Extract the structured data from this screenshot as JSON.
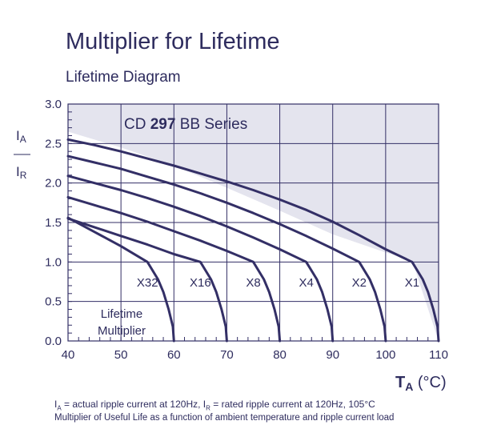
{
  "title": "Multiplier for Lifetime",
  "subtitle": "Lifetime Diagram",
  "series_label": {
    "prefix": "CD ",
    "bold": "297",
    "suffix": " BB Series"
  },
  "footnote": {
    "line1_a": "I",
    "line1_a_sub": "A",
    "line1_b": " = actual ripple current at 120Hz, I",
    "line1_b_sub": "R",
    "line1_c": " = rated ripple current at 120Hz, 105°C",
    "line2": "Multiplier of Useful Life as a function of ambient temperature and ripple current load"
  },
  "colors": {
    "curve": "#332f66",
    "grid": "#332f66",
    "shade": "#e4e4ee",
    "text": "#2e2c5e"
  },
  "chart_data": {
    "type": "line",
    "title": "Lifetime Diagram",
    "xlabel": "T",
    "xlabel_sub": "A",
    "xlabel_unit": " (°C)",
    "ylabel_num": "I",
    "ylabel_num_sub": "A",
    "ylabel_den": "I",
    "ylabel_den_sub": "R",
    "xlim": [
      40,
      110
    ],
    "ylim": [
      0,
      3
    ],
    "xticks": [
      "40",
      "50",
      "60",
      "70",
      "80",
      "90",
      "100",
      "110"
    ],
    "yticks": [
      "0.0",
      "0.5",
      "1.0",
      "1.5",
      "2.0",
      "2.5",
      "3.0"
    ],
    "grid": true,
    "legend_title": [
      "Lifetime",
      "Multiplier"
    ],
    "shaded_region": {
      "x": [
        40,
        50,
        60,
        70,
        80,
        90,
        100,
        105,
        110
      ],
      "y": [
        2.65,
        2.45,
        2.22,
        1.94,
        1.65,
        1.35,
        1.12,
        1.02,
        0.0
      ]
    },
    "series": [
      {
        "name": "X1",
        "x": [
          40,
          45,
          50,
          55,
          60,
          65,
          70,
          75,
          80,
          85,
          90,
          95,
          100,
          105,
          107,
          108,
          109,
          109.8,
          110
        ],
        "y": [
          2.55,
          2.48,
          2.4,
          2.31,
          2.22,
          2.12,
          2.02,
          1.91,
          1.79,
          1.66,
          1.51,
          1.34,
          1.16,
          1.0,
          0.78,
          0.62,
          0.4,
          0.18,
          0.0
        ]
      },
      {
        "name": "X2",
        "x": [
          40,
          45,
          50,
          55,
          60,
          65,
          70,
          75,
          80,
          85,
          90,
          95,
          97,
          98,
          99,
          99.8,
          100
        ],
        "y": [
          2.34,
          2.26,
          2.18,
          2.08,
          1.98,
          1.87,
          1.75,
          1.62,
          1.48,
          1.33,
          1.17,
          1.0,
          0.78,
          0.62,
          0.4,
          0.18,
          0.0
        ]
      },
      {
        "name": "X4",
        "x": [
          40,
          45,
          50,
          55,
          60,
          65,
          70,
          75,
          80,
          85,
          87,
          88,
          89,
          89.8,
          90
        ],
        "y": [
          2.09,
          2.0,
          1.91,
          1.81,
          1.7,
          1.58,
          1.45,
          1.31,
          1.16,
          1.0,
          0.78,
          0.62,
          0.4,
          0.18,
          0.0
        ]
      },
      {
        "name": "X8",
        "x": [
          40,
          45,
          50,
          55,
          60,
          65,
          70,
          75,
          77,
          78,
          79,
          79.8,
          80
        ],
        "y": [
          1.82,
          1.72,
          1.62,
          1.51,
          1.39,
          1.27,
          1.14,
          1.0,
          0.78,
          0.62,
          0.4,
          0.18,
          0.0
        ]
      },
      {
        "name": "X16",
        "x": [
          40,
          45,
          50,
          55,
          60,
          65,
          67,
          68,
          69,
          69.8,
          70
        ],
        "y": [
          1.55,
          1.44,
          1.33,
          1.22,
          1.1,
          1.0,
          0.78,
          0.62,
          0.4,
          0.18,
          0.0
        ]
      },
      {
        "name": "X32",
        "x": [
          40,
          45,
          50,
          55,
          57,
          58,
          59,
          59.8,
          60
        ],
        "y": [
          1.56,
          1.38,
          1.2,
          1.0,
          0.78,
          0.62,
          0.4,
          0.18,
          0.0
        ]
      }
    ]
  }
}
